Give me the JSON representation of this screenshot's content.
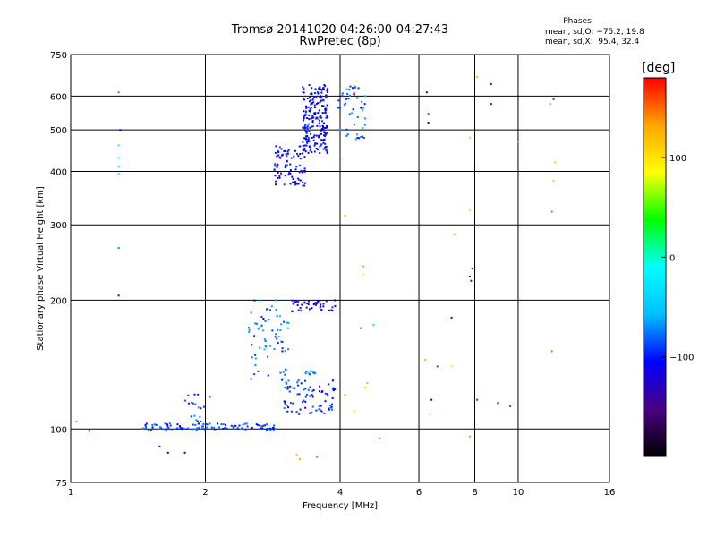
{
  "header": {
    "title": "Tromsø 20141020 04:26:00-04:27:43",
    "subtitle": "RwPretec (8p)"
  },
  "phase_box": {
    "title": "Phases",
    "stats": [
      "mean, sd,O: −75.2, 19.8",
      "mean, sd,X:  95.4, 32.4"
    ]
  },
  "colorbar": {
    "label": "[deg]",
    "ticks": [
      "100",
      "0",
      "−100"
    ],
    "tick_values": [
      100,
      0,
      -100
    ],
    "range": [
      -200,
      180
    ],
    "colors": [
      "#000000",
      "#4b0082",
      "#0000ff",
      "#00bfff",
      "#00ffff",
      "#00ff00",
      "#ffff00",
      "#ffa500",
      "#ff0000"
    ]
  },
  "chart_data": {
    "type": "scatter",
    "title": "Tromsø 20141020 04:26:00-04:27:43",
    "subtitle": "RwPretec (8p)",
    "xlabel": "Frequency [MHz]",
    "ylabel": "Stationary phase Virtual Height [km]",
    "xscale": "log",
    "yscale": "log",
    "xlim": [
      1,
      16
    ],
    "ylim": [
      75,
      750
    ],
    "x_ticks": [
      1,
      2,
      4,
      6,
      8,
      10,
      16
    ],
    "x_tick_labels": [
      "1",
      "2",
      "4",
      "6",
      "8",
      "10",
      "16"
    ],
    "y_ticks": [
      75,
      100,
      200,
      300,
      400,
      500,
      600,
      750
    ],
    "y_tick_labels": [
      "75",
      "100",
      "200",
      "300",
      "400",
      "500",
      "600",
      "750"
    ],
    "grid": true,
    "color_encodes": "phase [deg]",
    "clusters": [
      {
        "name": "",
        "x": [
          3.3,
          3.75
        ],
        "y": [
          440,
          640
        ],
        "phase": -110,
        "count": 220
      },
      {
        "name": "",
        "x": [
          2.85,
          3.35
        ],
        "y": [
          370,
          460
        ],
        "phase": -105,
        "count": 90
      },
      {
        "name": "",
        "x": [
          3.95,
          4.55
        ],
        "y": [
          470,
          640
        ],
        "phase": -80,
        "count": 45
      },
      {
        "name": "",
        "x": [
          2.5,
          3.1
        ],
        "y": [
          130,
          200
        ],
        "phase": -80,
        "count": 70
      },
      {
        "name": "",
        "x": [
          3.1,
          3.9
        ],
        "y": [
          188,
          200
        ],
        "phase": -115,
        "count": 45
      },
      {
        "name": "",
        "x": [
          3.0,
          3.9
        ],
        "y": [
          108,
          130
        ],
        "phase": -95,
        "count": 80
      },
      {
        "name": "",
        "x": [
          1.45,
          2.9
        ],
        "y": [
          99,
          103
        ],
        "phase": -90,
        "count": 120
      },
      {
        "name": "",
        "x": [
          1.8,
          2.05
        ],
        "y": [
          104,
          123
        ],
        "phase": -90,
        "count": 18
      },
      {
        "name": "",
        "x": [
          3.35,
          3.55
        ],
        "y": [
          134,
          137
        ],
        "phase": -70,
        "count": 12
      }
    ],
    "points": [
      {
        "x": 1.28,
        "y": 612,
        "phase": -70
      },
      {
        "x": 1.29,
        "y": 500,
        "phase": -95
      },
      {
        "x": 1.28,
        "y": 460,
        "phase": -5
      },
      {
        "x": 1.28,
        "y": 430,
        "phase": -5
      },
      {
        "x": 1.28,
        "y": 410,
        "phase": -5
      },
      {
        "x": 1.28,
        "y": 395,
        "phase": -5
      },
      {
        "x": 1.28,
        "y": 265,
        "phase": -70
      },
      {
        "x": 1.28,
        "y": 205,
        "phase": -120
      },
      {
        "x": 1.03,
        "y": 104,
        "phase": -60
      },
      {
        "x": 1.1,
        "y": 99,
        "phase": -70
      },
      {
        "x": 1.58,
        "y": 91,
        "phase": -110
      },
      {
        "x": 1.65,
        "y": 88,
        "phase": -115
      },
      {
        "x": 1.8,
        "y": 88,
        "phase": -120
      },
      {
        "x": 3.2,
        "y": 87,
        "phase": 120
      },
      {
        "x": 3.25,
        "y": 85,
        "phase": 130
      },
      {
        "x": 3.55,
        "y": 86,
        "phase": 150
      },
      {
        "x": 4.5,
        "y": 240,
        "phase": 40
      },
      {
        "x": 4.5,
        "y": 230,
        "phase": 90
      },
      {
        "x": 4.45,
        "y": 172,
        "phase": 160
      },
      {
        "x": 4.75,
        "y": 175,
        "phase": 20
      },
      {
        "x": 4.1,
        "y": 315,
        "phase": 120
      },
      {
        "x": 4.1,
        "y": 120,
        "phase": 130
      },
      {
        "x": 4.9,
        "y": 95,
        "phase": -60
      },
      {
        "x": 6.25,
        "y": 612,
        "phase": -110
      },
      {
        "x": 6.3,
        "y": 545,
        "phase": -80
      },
      {
        "x": 6.3,
        "y": 520,
        "phase": -110
      },
      {
        "x": 6.2,
        "y": 145,
        "phase": 130
      },
      {
        "x": 6.4,
        "y": 117,
        "phase": -120
      },
      {
        "x": 6.35,
        "y": 108,
        "phase": 100
      },
      {
        "x": 6.6,
        "y": 140,
        "phase": -80
      },
      {
        "x": 7.2,
        "y": 285,
        "phase": 120
      },
      {
        "x": 7.1,
        "y": 182,
        "phase": -120
      },
      {
        "x": 7.1,
        "y": 140,
        "phase": 100
      },
      {
        "x": 7.8,
        "y": 480,
        "phase": 110
      },
      {
        "x": 7.8,
        "y": 325,
        "phase": 110
      },
      {
        "x": 7.9,
        "y": 237,
        "phase": -130
      },
      {
        "x": 7.8,
        "y": 227,
        "phase": -120
      },
      {
        "x": 7.85,
        "y": 222,
        "phase": -150
      },
      {
        "x": 7.8,
        "y": 96,
        "phase": 50
      },
      {
        "x": 8.1,
        "y": 665,
        "phase": 120
      },
      {
        "x": 8.1,
        "y": 117,
        "phase": -90
      },
      {
        "x": 8.7,
        "y": 640,
        "phase": -120
      },
      {
        "x": 8.7,
        "y": 575,
        "phase": -110
      },
      {
        "x": 9.0,
        "y": 115,
        "phase": 160
      },
      {
        "x": 9.6,
        "y": 113,
        "phase": -80
      },
      {
        "x": 10.0,
        "y": 468,
        "phase": 140
      },
      {
        "x": 11.8,
        "y": 575,
        "phase": 150
      },
      {
        "x": 12.0,
        "y": 590,
        "phase": -90
      },
      {
        "x": 12.1,
        "y": 420,
        "phase": 110
      },
      {
        "x": 12.0,
        "y": 380,
        "phase": 110
      },
      {
        "x": 11.9,
        "y": 322,
        "phase": 150
      },
      {
        "x": 11.9,
        "y": 152,
        "phase": 150
      },
      {
        "x": 4.35,
        "y": 650,
        "phase": 80
      },
      {
        "x": 4.3,
        "y": 610,
        "phase": 160
      },
      {
        "x": 4.55,
        "y": 600,
        "phase": -60
      },
      {
        "x": 4.0,
        "y": 430,
        "phase": 150
      },
      {
        "x": 4.55,
        "y": 125,
        "phase": 100
      },
      {
        "x": 4.6,
        "y": 128,
        "phase": 120
      },
      {
        "x": 4.3,
        "y": 110,
        "phase": 100
      }
    ]
  }
}
